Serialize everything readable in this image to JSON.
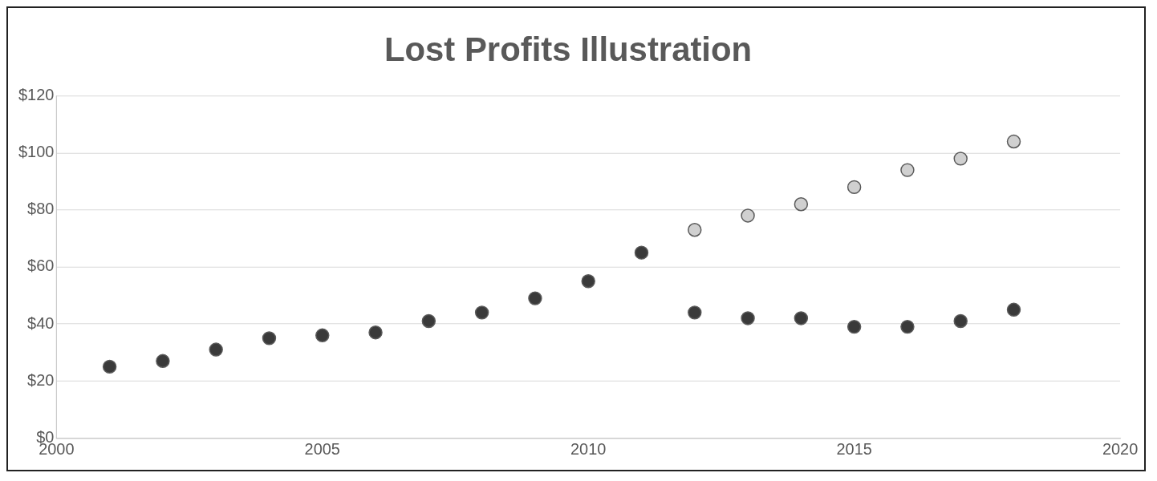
{
  "chart_data": {
    "type": "scatter",
    "title": "Lost Profits Illustration",
    "xlim": [
      2000,
      2020
    ],
    "xticks": [
      2000,
      2005,
      2010,
      2015,
      2020
    ],
    "ylim": [
      0,
      120
    ],
    "yticks": [
      {
        "value": 0,
        "label": "$0"
      },
      {
        "value": 20,
        "label": "$20"
      },
      {
        "value": 40,
        "label": "$40"
      },
      {
        "value": 60,
        "label": "$60"
      },
      {
        "value": 80,
        "label": "$80"
      },
      {
        "value": 100,
        "label": "$100"
      },
      {
        "value": 120,
        "label": "$120"
      }
    ],
    "grid": "y",
    "legend": false,
    "marker": "circle",
    "series": [
      {
        "color": "#3a3a3a",
        "x": [
          2001,
          2002,
          2003,
          2004,
          2005,
          2006,
          2007,
          2008,
          2009,
          2010,
          2011,
          2012,
          2013,
          2014,
          2015,
          2016,
          2017,
          2018
        ],
        "values": [
          25,
          27,
          31,
          35,
          36,
          37,
          41,
          44,
          49,
          55,
          65,
          44,
          42,
          42,
          39,
          39,
          41,
          45
        ]
      },
      {
        "color": "#d0d0d0",
        "x": [
          2012,
          2013,
          2014,
          2015,
          2016,
          2017,
          2018
        ],
        "values": [
          73,
          78,
          82,
          88,
          94,
          98,
          104
        ]
      }
    ]
  }
}
